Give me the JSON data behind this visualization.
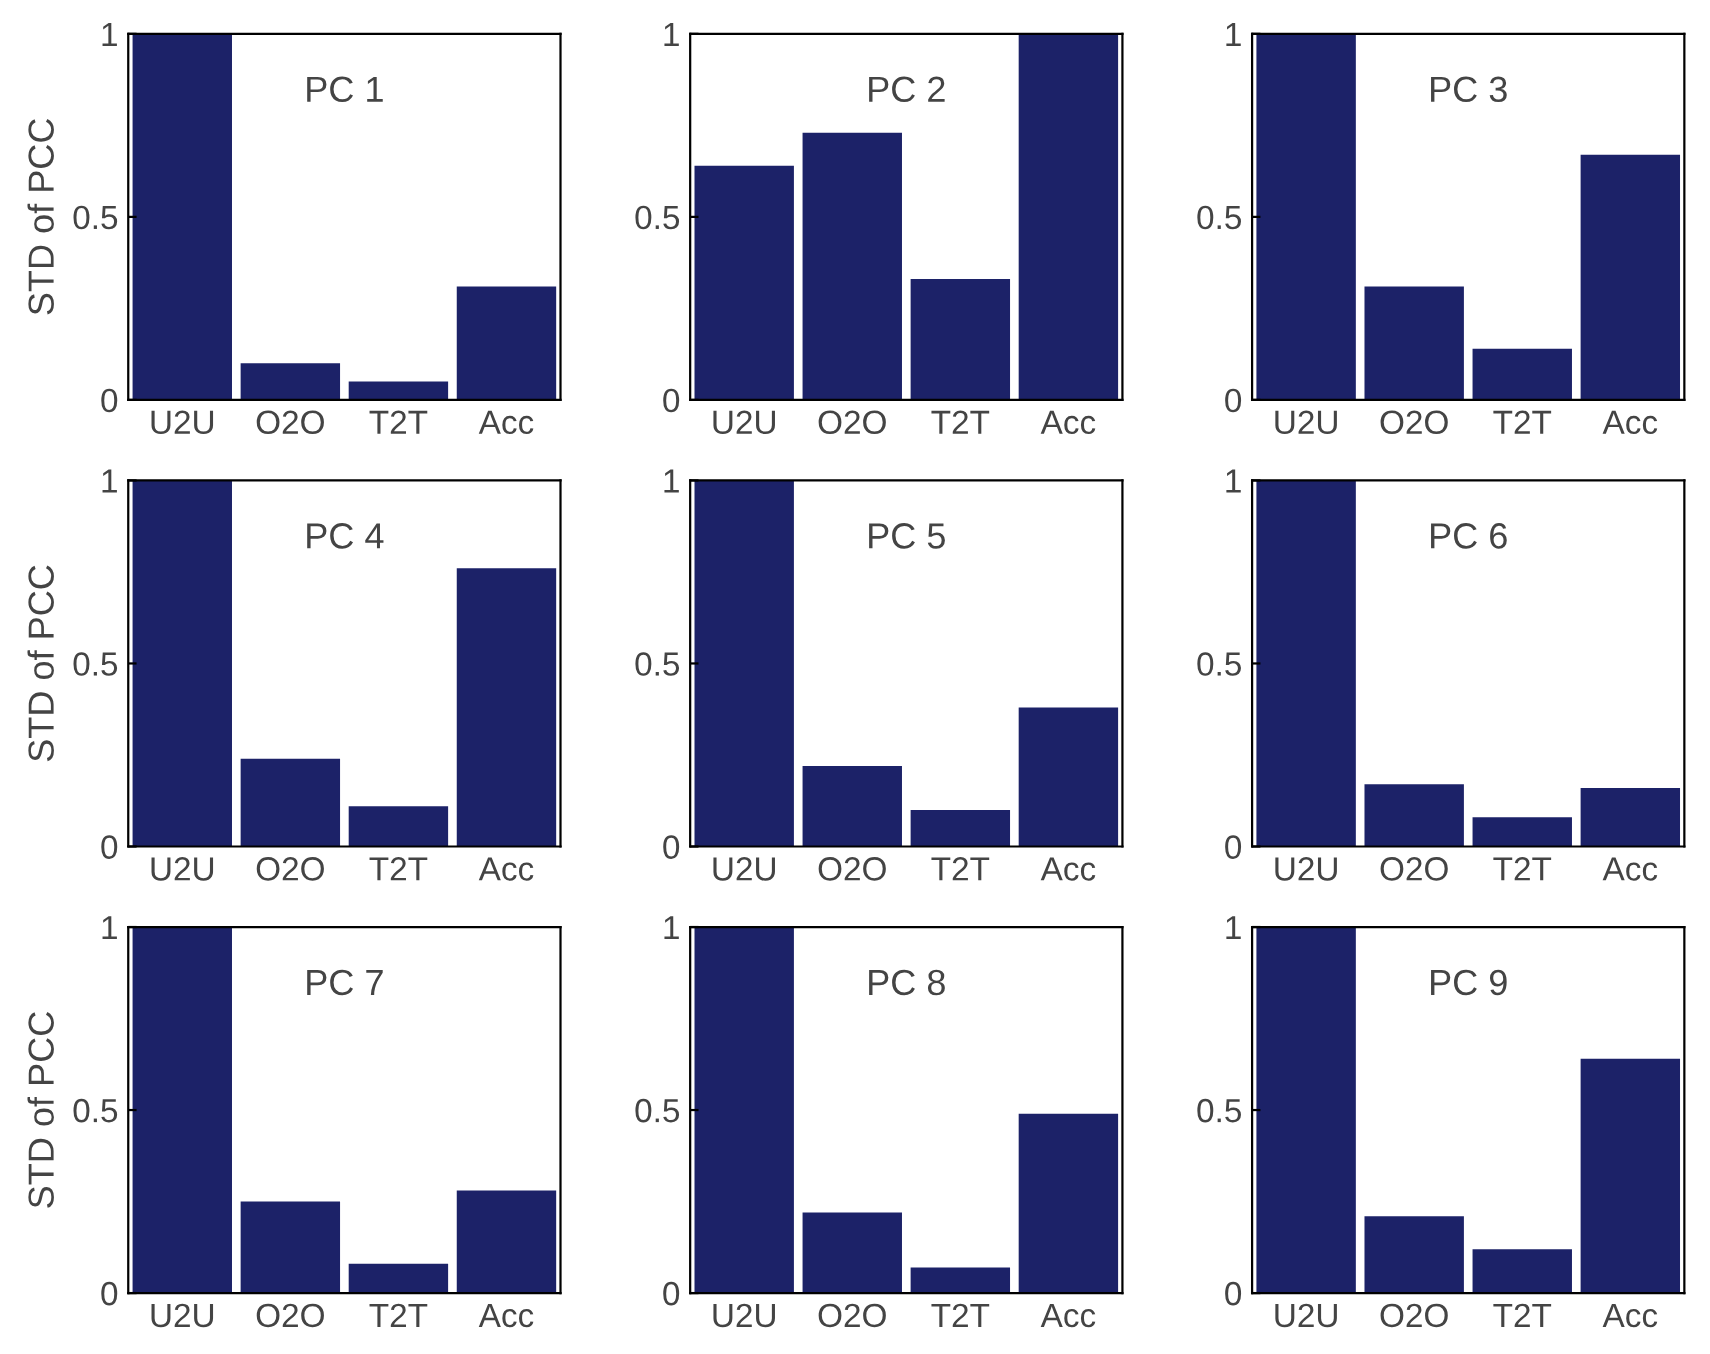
{
  "chart_data": [
    {
      "type": "bar",
      "title": "PC 1",
      "ylabel": "STD of PCC",
      "categories": [
        "U2U",
        "O2O",
        "T2T",
        "Acc"
      ],
      "values": [
        1,
        0.1,
        0.05,
        0.31
      ],
      "color": "#1c2268",
      "ylim": [
        0,
        1
      ],
      "yticks": [
        0,
        0.5,
        1
      ],
      "grid": false
    },
    {
      "type": "bar",
      "title": "PC 2",
      "categories": [
        "U2U",
        "O2O",
        "T2T",
        "Acc"
      ],
      "values": [
        0.64,
        0.73,
        0.33,
        1
      ],
      "color": "#1c2268",
      "ylim": [
        0,
        1
      ],
      "yticks": [
        0,
        0.5,
        1
      ],
      "grid": false
    },
    {
      "type": "bar",
      "title": "PC 3",
      "categories": [
        "U2U",
        "O2O",
        "T2T",
        "Acc"
      ],
      "values": [
        1,
        0.31,
        0.14,
        0.67
      ],
      "color": "#1c2268",
      "ylim": [
        0,
        1
      ],
      "yticks": [
        0,
        0.5,
        1
      ],
      "grid": false
    },
    {
      "type": "bar",
      "title": "PC 4",
      "ylabel": "STD of PCC",
      "categories": [
        "U2U",
        "O2O",
        "T2T",
        "Acc"
      ],
      "values": [
        1,
        0.24,
        0.11,
        0.76
      ],
      "color": "#1c2268",
      "ylim": [
        0,
        1
      ],
      "yticks": [
        0,
        0.5,
        1
      ],
      "grid": false
    },
    {
      "type": "bar",
      "title": "PC 5",
      "categories": [
        "U2U",
        "O2O",
        "T2T",
        "Acc"
      ],
      "values": [
        1,
        0.22,
        0.1,
        0.38
      ],
      "color": "#1c2268",
      "ylim": [
        0,
        1
      ],
      "yticks": [
        0,
        0.5,
        1
      ],
      "grid": false
    },
    {
      "type": "bar",
      "title": "PC 6",
      "categories": [
        "U2U",
        "O2O",
        "T2T",
        "Acc"
      ],
      "values": [
        1,
        0.17,
        0.08,
        0.16
      ],
      "color": "#1c2268",
      "ylim": [
        0,
        1
      ],
      "yticks": [
        0,
        0.5,
        1
      ],
      "grid": false
    },
    {
      "type": "bar",
      "title": "PC 7",
      "ylabel": "STD of PCC",
      "categories": [
        "U2U",
        "O2O",
        "T2T",
        "Acc"
      ],
      "values": [
        1,
        0.25,
        0.08,
        0.28
      ],
      "color": "#1c2268",
      "ylim": [
        0,
        1
      ],
      "yticks": [
        0,
        0.5,
        1
      ],
      "grid": false
    },
    {
      "type": "bar",
      "title": "PC 8",
      "categories": [
        "U2U",
        "O2O",
        "T2T",
        "Acc"
      ],
      "values": [
        1,
        0.22,
        0.07,
        0.49
      ],
      "color": "#1c2268",
      "ylim": [
        0,
        1
      ],
      "yticks": [
        0,
        0.5,
        1
      ],
      "grid": false
    },
    {
      "type": "bar",
      "title": "PC 9",
      "categories": [
        "U2U",
        "O2O",
        "T2T",
        "Acc"
      ],
      "values": [
        1,
        0.21,
        0.12,
        0.64
      ],
      "color": "#1c2268",
      "ylim": [
        0,
        1
      ],
      "yticks": [
        0,
        0.5,
        1
      ],
      "grid": false
    }
  ]
}
